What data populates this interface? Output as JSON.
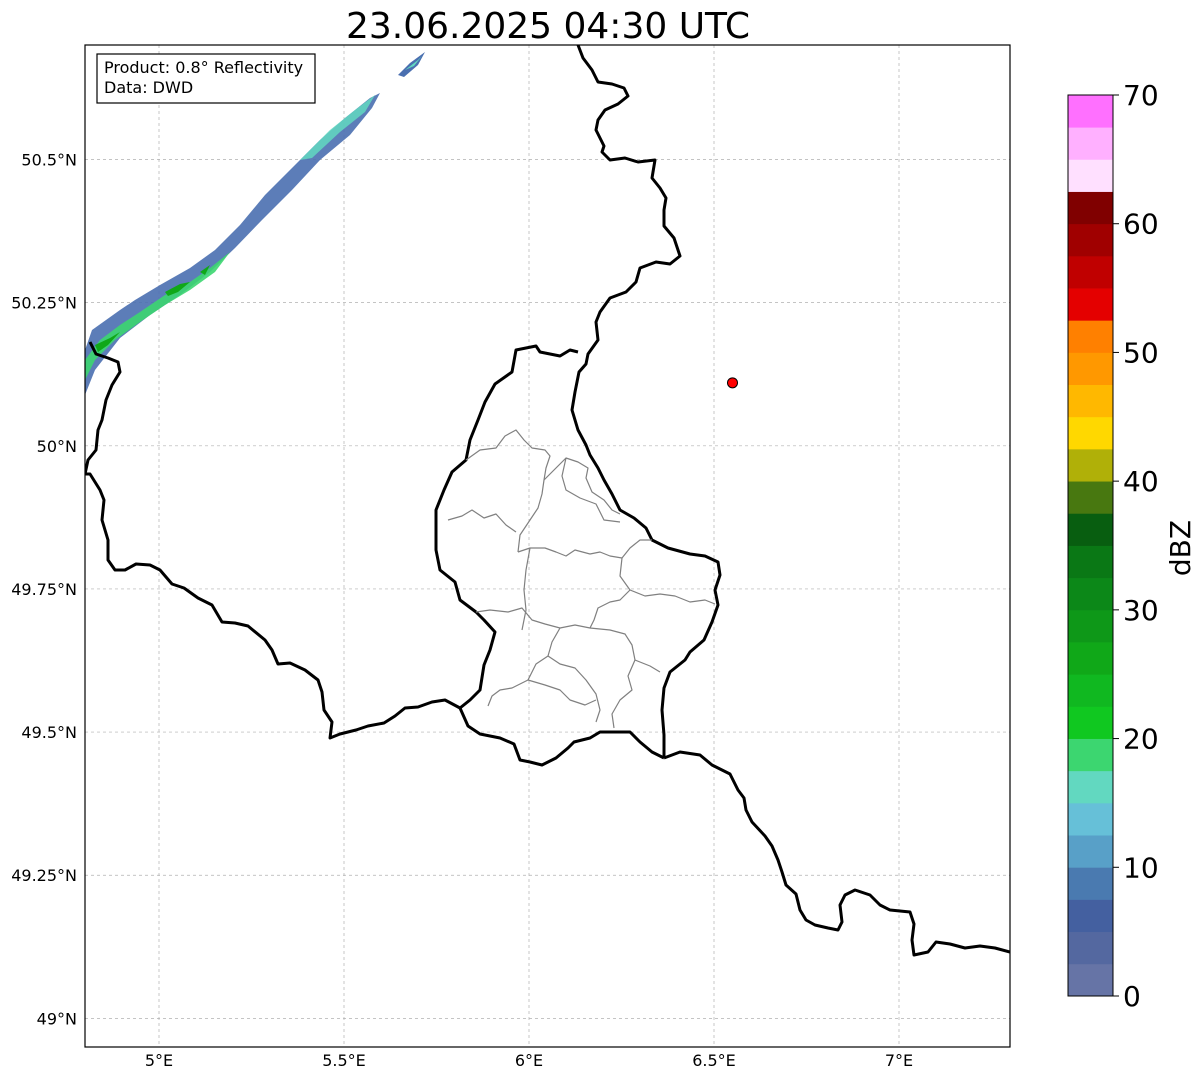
{
  "title": "23.06.2025 04:30 UTC",
  "info_box": {
    "product_line": "Product: 0.8° Reflectivity",
    "data_line": "Data: DWD"
  },
  "map": {
    "lon_ticks": [
      "5°E",
      "5.5°E",
      "6°E",
      "6.5°E",
      "7°E"
    ],
    "lat_ticks": [
      "50.5°N",
      "50.25°N",
      "50°N",
      "49.75°N",
      "49.5°N",
      "49.25°N",
      "49°N"
    ],
    "marker": {
      "lon": 6.55,
      "lat": 50.11,
      "color": "#ff0000"
    }
  },
  "colorbar": {
    "label": "dBZ",
    "tick_labels": [
      "0",
      "10",
      "20",
      "30",
      "40",
      "50",
      "60",
      "70"
    ],
    "min": 0,
    "max": 70,
    "step": 2.5,
    "colors": [
      "#6674a6",
      "#5468a0",
      "#4460a0",
      "#4a7ab0",
      "#58a0c8",
      "#66c0d8",
      "#62d8c0",
      "#3cd670",
      "#10c820",
      "#10b820",
      "#10a818",
      "#0e9818",
      "#0c8818",
      "#0a7815",
      "#085e10",
      "#487810",
      "#b0b008",
      "#ffd800",
      "#ffb800",
      "#ff9800",
      "#ff8000",
      "#e40000",
      "#c00000",
      "#a00000",
      "#800000",
      "#ffe0ff",
      "#ffb0ff",
      "#ff70ff",
      "#ee3cee"
    ]
  },
  "colors": {
    "country_border": "#000000",
    "canton_border": "#808080",
    "grid": "#b0b0b0",
    "marker": "#ff0000"
  }
}
